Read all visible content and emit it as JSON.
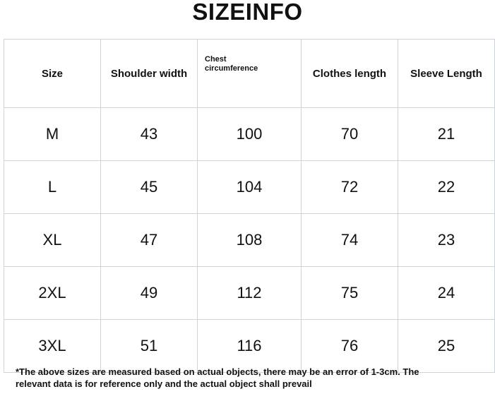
{
  "header": {
    "title": "SIZEINFO"
  },
  "table": {
    "columns": [
      "Size",
      "Shoulder width",
      "Chest circumference",
      "Clothes length",
      "Sleeve Length"
    ],
    "rows": [
      [
        "M",
        43,
        100,
        70,
        21
      ],
      [
        "L",
        45,
        104,
        72,
        22
      ],
      [
        "XL",
        47,
        108,
        74,
        23
      ],
      [
        "2XL",
        49,
        112,
        75,
        24
      ],
      [
        "3XL",
        51,
        116,
        76,
        25
      ]
    ]
  },
  "footnote": {
    "lines": [
      "*The above sizes are measured based on actual objects, there may be an error of 1-3cm. The",
      "relevant data is for reference only and the actual object shall prevail"
    ]
  }
}
